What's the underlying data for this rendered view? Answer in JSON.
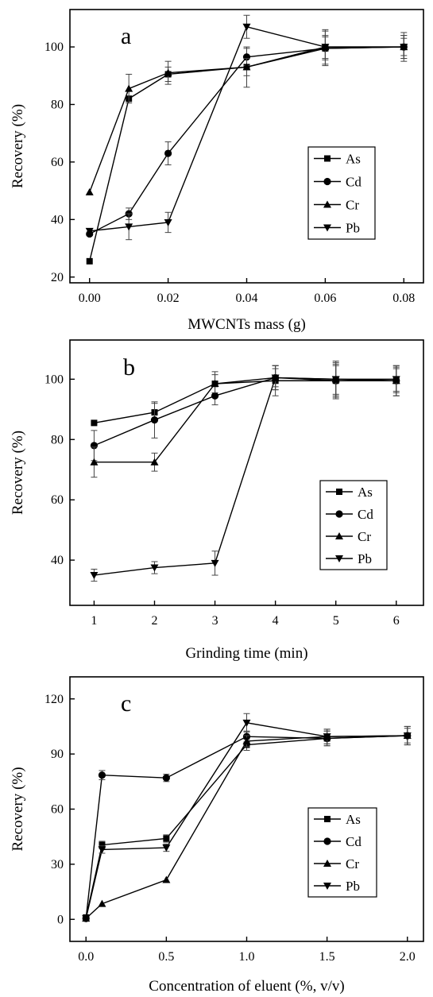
{
  "chart_data": [
    {
      "type": "line",
      "panel_label": "a",
      "xlabel": "MWCNTs mass (g)",
      "ylabel": "Recovery (%)",
      "x": [
        0.0,
        0.01,
        0.02,
        0.04,
        0.06,
        0.08
      ],
      "x_ticks": [
        "0.00",
        "0.02",
        "0.04",
        "0.06",
        "0.08"
      ],
      "x_tick_values": [
        0.0,
        0.02,
        0.04,
        0.06,
        0.08
      ],
      "xlim": [
        -0.005,
        0.085
      ],
      "y_ticks": [
        20,
        40,
        60,
        80,
        100
      ],
      "ylim": [
        18,
        113
      ],
      "legend_position": "right",
      "series": [
        {
          "name": "As",
          "marker": "square",
          "values": [
            25.5,
            82,
            90.5,
            93,
            99.5,
            100
          ],
          "errors": [
            0,
            0,
            2.5,
            7,
            6,
            4
          ]
        },
        {
          "name": "Cd",
          "marker": "circle",
          "values": [
            35,
            42,
            63,
            96.5,
            99.5,
            100
          ],
          "errors": [
            0,
            2,
            4,
            3,
            4,
            3
          ]
        },
        {
          "name": "Cr",
          "marker": "triangle-up",
          "values": [
            49.5,
            85.5,
            91,
            93,
            100,
            100
          ],
          "errors": [
            0,
            5,
            4,
            3,
            6,
            4
          ]
        },
        {
          "name": "Pb",
          "marker": "triangle-down",
          "values": [
            36,
            37.5,
            39,
            107,
            100,
            100
          ],
          "errors": [
            0,
            4.5,
            3.5,
            4,
            4,
            5
          ]
        }
      ]
    },
    {
      "type": "line",
      "panel_label": "b",
      "xlabel": "Grinding time (min)",
      "ylabel": "Recovery (%)",
      "x": [
        1,
        2,
        3,
        4,
        5,
        6
      ],
      "x_ticks": [
        "1",
        "2",
        "3",
        "4",
        "5",
        "6"
      ],
      "x_tick_values": [
        1,
        2,
        3,
        4,
        5,
        6
      ],
      "xlim": [
        0.6,
        6.45
      ],
      "y_ticks": [
        40,
        60,
        80,
        100
      ],
      "ylim": [
        25,
        113
      ],
      "legend_position": "right",
      "series": [
        {
          "name": "As",
          "marker": "square",
          "values": [
            85.5,
            89,
            98.5,
            99.5,
            99.5,
            99.5
          ],
          "errors": [
            0,
            3,
            4,
            5,
            5,
            4
          ]
        },
        {
          "name": "Cd",
          "marker": "circle",
          "values": [
            78,
            86.5,
            94.5,
            100.5,
            99.5,
            99.5
          ],
          "errors": [
            5,
            6,
            3,
            4,
            6,
            5
          ]
        },
        {
          "name": "Cr",
          "marker": "triangle-up",
          "values": [
            72.5,
            72.5,
            98.5,
            100.5,
            100,
            99.5
          ],
          "errors": [
            5,
            3,
            3,
            4,
            6,
            5
          ]
        },
        {
          "name": "Pb",
          "marker": "triangle-down",
          "values": [
            35,
            37.5,
            39,
            100.5,
            100,
            100
          ],
          "errors": [
            2,
            2,
            4,
            3,
            5,
            4
          ]
        }
      ]
    },
    {
      "type": "line",
      "panel_label": "c",
      "xlabel": "Concentration of eluent (%, v/v)",
      "ylabel": "Recovery (%)",
      "x": [
        0.0,
        0.1,
        0.5,
        1.0,
        1.5,
        2.0
      ],
      "x_ticks": [
        "0.0",
        "0.5",
        "1.0",
        "1.5",
        "2.0"
      ],
      "x_tick_values": [
        0.0,
        0.5,
        1.0,
        1.5,
        2.0
      ],
      "xlim": [
        -0.1,
        2.1
      ],
      "y_ticks": [
        0,
        30,
        60,
        90,
        120
      ],
      "ylim": [
        -12,
        132
      ],
      "legend_position": "right",
      "series": [
        {
          "name": "As",
          "marker": "square",
          "values": [
            1,
            40.5,
            44,
            95,
            98.5,
            100
          ],
          "errors": [
            0,
            2,
            2,
            3,
            4,
            5
          ]
        },
        {
          "name": "Cd",
          "marker": "circle",
          "values": [
            0.5,
            78.5,
            77,
            99.5,
            98.5,
            100
          ],
          "errors": [
            0,
            2.5,
            2,
            3,
            4,
            5
          ]
        },
        {
          "name": "Cr",
          "marker": "triangle-up",
          "values": [
            0.5,
            8.5,
            21.5,
            97,
            99.5,
            100
          ],
          "errors": [
            0,
            0,
            0,
            3,
            4,
            5
          ]
        },
        {
          "name": "Pb",
          "marker": "triangle-down",
          "values": [
            0.5,
            38,
            39,
            107,
            99.5,
            100
          ],
          "errors": [
            0,
            2,
            2,
            5,
            4,
            4
          ]
        }
      ]
    }
  ]
}
